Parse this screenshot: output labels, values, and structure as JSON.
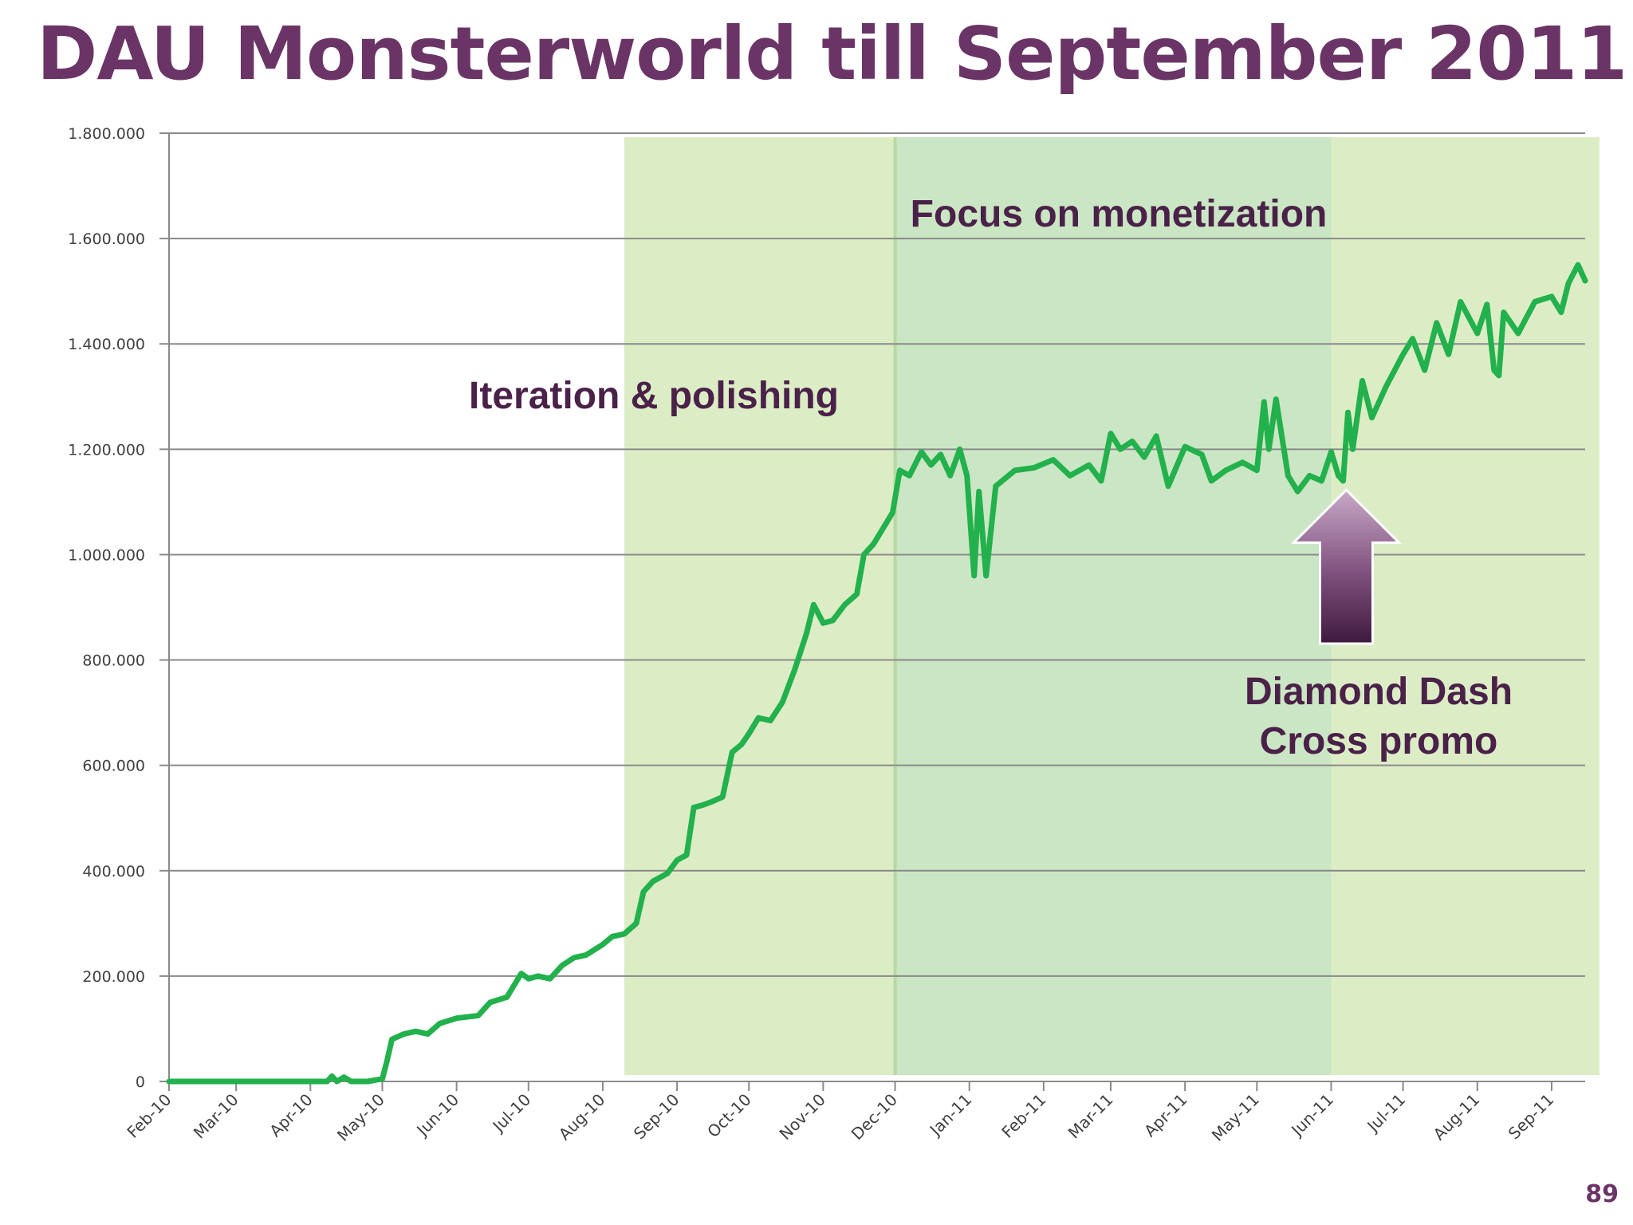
{
  "slide": {
    "title": "DAU Monsterworld till September 2011",
    "page_number": "89"
  },
  "chart_data": {
    "type": "line",
    "title": "",
    "xlabel": "",
    "ylabel": "",
    "ylim": [
      0,
      1800000
    ],
    "yticks": [
      0,
      200000,
      400000,
      600000,
      800000,
      1000000,
      1200000,
      1400000,
      1600000,
      1800000
    ],
    "ytick_labels": [
      "0",
      "200.000",
      "400.000",
      "600.000",
      "800.000",
      "1.000.000",
      "1.200.000",
      "1.400.000",
      "1.600.000",
      "1.800.000"
    ],
    "x_range": [
      "2010-02-01",
      "2011-09-15"
    ],
    "xtick_labels": [
      "Feb-10",
      "Mar-10",
      "Apr-10",
      "May-10",
      "Jun-10",
      "Jul-10",
      "Aug-10",
      "Sep-10",
      "Oct-10",
      "Nov-10",
      "Dec-10",
      "Jan-11",
      "Feb-11",
      "Mar-11",
      "Apr-11",
      "May-11",
      "Jun-11",
      "Jul-11",
      "Aug-11",
      "Sep-11"
    ],
    "grid": "horizontal",
    "line_color": "#22b14c",
    "series": [
      {
        "name": "",
        "points": [
          [
            "2010-02-01",
            0
          ],
          [
            "2010-03-01",
            0
          ],
          [
            "2010-04-01",
            0
          ],
          [
            "2010-04-08",
            0
          ],
          [
            "2010-04-10",
            10000
          ],
          [
            "2010-04-12",
            0
          ],
          [
            "2010-04-15",
            8000
          ],
          [
            "2010-04-18",
            0
          ],
          [
            "2010-04-25",
            0
          ],
          [
            "2010-05-01",
            5000
          ],
          [
            "2010-05-03",
            40000
          ],
          [
            "2010-05-05",
            80000
          ],
          [
            "2010-05-10",
            90000
          ],
          [
            "2010-05-15",
            95000
          ],
          [
            "2010-05-20",
            90000
          ],
          [
            "2010-05-25",
            110000
          ],
          [
            "2010-06-01",
            120000
          ],
          [
            "2010-06-10",
            125000
          ],
          [
            "2010-06-15",
            150000
          ],
          [
            "2010-06-22",
            160000
          ],
          [
            "2010-06-28",
            205000
          ],
          [
            "2010-07-01",
            195000
          ],
          [
            "2010-07-05",
            200000
          ],
          [
            "2010-07-10",
            195000
          ],
          [
            "2010-07-15",
            220000
          ],
          [
            "2010-07-20",
            235000
          ],
          [
            "2010-07-25",
            240000
          ],
          [
            "2010-08-01",
            260000
          ],
          [
            "2010-08-05",
            275000
          ],
          [
            "2010-08-10",
            280000
          ],
          [
            "2010-08-15",
            300000
          ],
          [
            "2010-08-18",
            360000
          ],
          [
            "2010-08-22",
            380000
          ],
          [
            "2010-08-28",
            395000
          ],
          [
            "2010-09-01",
            420000
          ],
          [
            "2010-09-05",
            430000
          ],
          [
            "2010-09-08",
            520000
          ],
          [
            "2010-09-12",
            525000
          ],
          [
            "2010-09-15",
            530000
          ],
          [
            "2010-09-20",
            540000
          ],
          [
            "2010-09-24",
            625000
          ],
          [
            "2010-09-28",
            640000
          ],
          [
            "2010-10-01",
            660000
          ],
          [
            "2010-10-05",
            690000
          ],
          [
            "2010-10-10",
            685000
          ],
          [
            "2010-10-15",
            720000
          ],
          [
            "2010-10-20",
            780000
          ],
          [
            "2010-10-25",
            850000
          ],
          [
            "2010-10-28",
            905000
          ],
          [
            "2010-11-01",
            870000
          ],
          [
            "2010-11-05",
            875000
          ],
          [
            "2010-11-10",
            905000
          ],
          [
            "2010-11-15",
            925000
          ],
          [
            "2010-11-18",
            1000000
          ],
          [
            "2010-11-22",
            1020000
          ],
          [
            "2010-11-26",
            1050000
          ],
          [
            "2010-11-30",
            1080000
          ],
          [
            "2010-12-03",
            1160000
          ],
          [
            "2010-12-07",
            1150000
          ],
          [
            "2010-12-12",
            1195000
          ],
          [
            "2010-12-16",
            1170000
          ],
          [
            "2010-12-20",
            1190000
          ],
          [
            "2010-12-24",
            1150000
          ],
          [
            "2010-12-28",
            1200000
          ],
          [
            "2010-12-31",
            1150000
          ],
          [
            "2011-01-03",
            960000
          ],
          [
            "2011-01-05",
            1120000
          ],
          [
            "2011-01-08",
            960000
          ],
          [
            "2011-01-12",
            1130000
          ],
          [
            "2011-01-20",
            1160000
          ],
          [
            "2011-01-28",
            1165000
          ],
          [
            "2011-02-05",
            1180000
          ],
          [
            "2011-02-12",
            1150000
          ],
          [
            "2011-02-20",
            1170000
          ],
          [
            "2011-02-25",
            1140000
          ],
          [
            "2011-03-01",
            1230000
          ],
          [
            "2011-03-05",
            1200000
          ],
          [
            "2011-03-10",
            1215000
          ],
          [
            "2011-03-15",
            1185000
          ],
          [
            "2011-03-20",
            1225000
          ],
          [
            "2011-03-25",
            1130000
          ],
          [
            "2011-04-01",
            1205000
          ],
          [
            "2011-04-08",
            1190000
          ],
          [
            "2011-04-12",
            1140000
          ],
          [
            "2011-04-18",
            1160000
          ],
          [
            "2011-04-25",
            1175000
          ],
          [
            "2011-05-01",
            1160000
          ],
          [
            "2011-05-04",
            1290000
          ],
          [
            "2011-05-06",
            1200000
          ],
          [
            "2011-05-09",
            1295000
          ],
          [
            "2011-05-14",
            1150000
          ],
          [
            "2011-05-18",
            1120000
          ],
          [
            "2011-05-23",
            1150000
          ],
          [
            "2011-05-28",
            1140000
          ],
          [
            "2011-06-01",
            1195000
          ],
          [
            "2011-06-04",
            1150000
          ],
          [
            "2011-06-06",
            1140000
          ],
          [
            "2011-06-08",
            1270000
          ],
          [
            "2011-06-10",
            1200000
          ],
          [
            "2011-06-14",
            1330000
          ],
          [
            "2011-06-18",
            1260000
          ],
          [
            "2011-06-24",
            1320000
          ],
          [
            "2011-07-01",
            1380000
          ],
          [
            "2011-07-05",
            1410000
          ],
          [
            "2011-07-10",
            1350000
          ],
          [
            "2011-07-15",
            1440000
          ],
          [
            "2011-07-20",
            1380000
          ],
          [
            "2011-07-25",
            1480000
          ],
          [
            "2011-08-01",
            1420000
          ],
          [
            "2011-08-05",
            1475000
          ],
          [
            "2011-08-08",
            1350000
          ],
          [
            "2011-08-10",
            1340000
          ],
          [
            "2011-08-12",
            1460000
          ],
          [
            "2011-08-18",
            1420000
          ],
          [
            "2011-08-25",
            1480000
          ],
          [
            "2011-09-01",
            1490000
          ],
          [
            "2011-09-05",
            1460000
          ],
          [
            "2011-09-08",
            1515000
          ],
          [
            "2011-09-12",
            1550000
          ],
          [
            "2011-09-15",
            1520000
          ]
        ]
      }
    ],
    "shaded_regions": [
      {
        "from": "2010-08-10",
        "to": "2010-12-01",
        "color": "#dcedc6"
      },
      {
        "from": "2010-12-01",
        "to": "2011-06-01",
        "color": "#cbe6c4"
      },
      {
        "from": "2011-06-01",
        "to": "2011-09-30",
        "color": "#dcedc6"
      }
    ],
    "annotations": [
      {
        "lines": [
          "Iteration & polishing"
        ]
      },
      {
        "lines": [
          "Focus on monetization"
        ]
      },
      {
        "lines": [
          "Diamond Dash",
          "Cross promo"
        ],
        "arrow_to": [
          "2011-06-04",
          1150000
        ]
      }
    ]
  }
}
